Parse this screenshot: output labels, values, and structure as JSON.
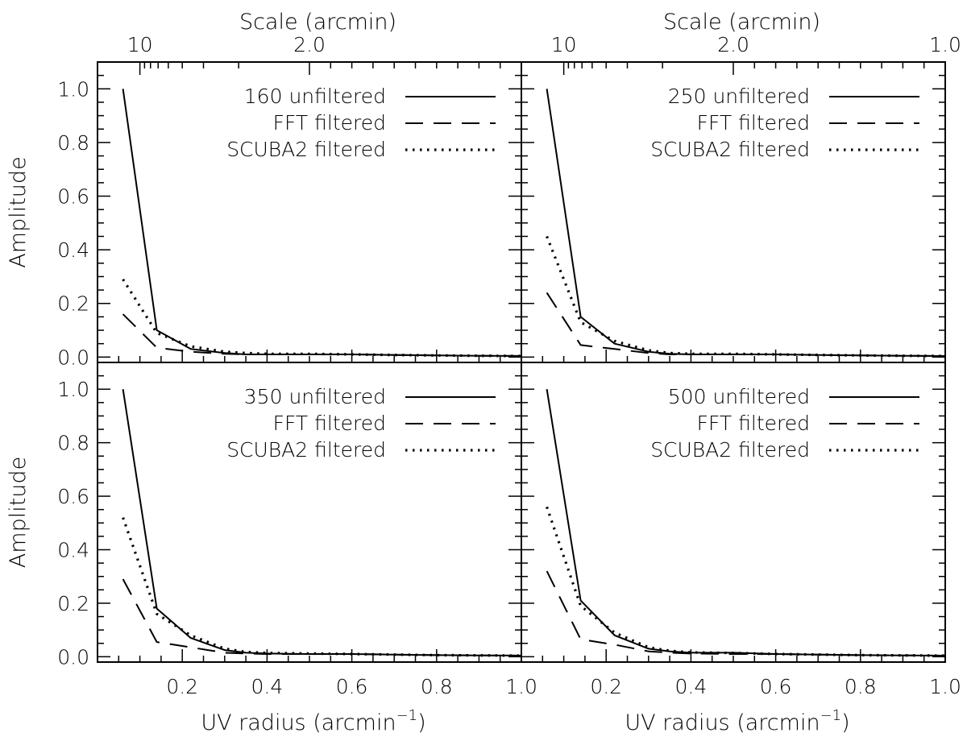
{
  "chart_data": {
    "type": "line",
    "layout": "2x2 grid, shared axes",
    "x_axis": {
      "label": "UV radius (arcmin",
      "label_superscript": "−1",
      "label_close": ")",
      "range": [
        0.0,
        1.0
      ],
      "tick_labels": [
        "0.2",
        "0.4",
        "0.6",
        "0.8",
        "1.0"
      ]
    },
    "top_axis": {
      "label": "Scale (arcmin)",
      "tick_labels": [
        "10",
        "2.0",
        "1.0"
      ]
    },
    "y_axis": {
      "label": "Amplitude",
      "range": [
        -0.02,
        1.1
      ],
      "tick_labels": [
        "0.0",
        "0.2",
        "0.4",
        "0.6",
        "0.8",
        "1.0"
      ]
    },
    "x": [
      0.06,
      0.14,
      0.22,
      0.3,
      0.35,
      0.4,
      0.5,
      0.6,
      0.7,
      0.8,
      0.9,
      1.0
    ],
    "legend_labels": [
      "unfiltered",
      "FFT filtered",
      "SCUBA2 filtered"
    ],
    "panels": [
      {
        "band": "160",
        "series": [
          {
            "name": "160 unfiltered",
            "style": "solid",
            "values": [
              1.0,
              0.1,
              0.03,
              0.015,
              0.01,
              0.01,
              0.01,
              0.01,
              0.008,
              0.006,
              0.005,
              0.004
            ]
          },
          {
            "name": "FFT filtered",
            "style": "dashed",
            "values": [
              0.16,
              0.035,
              0.02,
              0.012,
              0.01,
              0.01,
              0.01,
              0.01,
              0.008,
              0.006,
              0.005,
              0.004
            ]
          },
          {
            "name": "SCUBA2 filtered",
            "style": "dotted",
            "values": [
              0.29,
              0.09,
              0.04,
              0.02,
              0.015,
              0.012,
              0.012,
              0.01,
              0.008,
              0.006,
              0.005,
              0.004
            ]
          }
        ]
      },
      {
        "band": "250",
        "series": [
          {
            "name": "250 unfiltered",
            "style": "solid",
            "values": [
              1.0,
              0.15,
              0.05,
              0.02,
              0.012,
              0.01,
              0.01,
              0.01,
              0.008,
              0.006,
              0.005,
              0.004
            ]
          },
          {
            "name": "FFT filtered",
            "style": "dashed",
            "values": [
              0.24,
              0.045,
              0.03,
              0.015,
              0.01,
              0.01,
              0.01,
              0.01,
              0.008,
              0.006,
              0.005,
              0.004
            ]
          },
          {
            "name": "SCUBA2 filtered",
            "style": "dotted",
            "values": [
              0.45,
              0.13,
              0.06,
              0.025,
              0.015,
              0.012,
              0.012,
              0.01,
              0.008,
              0.006,
              0.005,
              0.004
            ]
          }
        ]
      },
      {
        "band": "350",
        "series": [
          {
            "name": "350 unfiltered",
            "style": "solid",
            "values": [
              1.0,
              0.18,
              0.07,
              0.025,
              0.015,
              0.012,
              0.01,
              0.01,
              0.008,
              0.006,
              0.005,
              0.004
            ]
          },
          {
            "name": "FFT filtered",
            "style": "dashed",
            "values": [
              0.29,
              0.055,
              0.035,
              0.015,
              0.012,
              0.01,
              0.01,
              0.01,
              0.008,
              0.006,
              0.005,
              0.004
            ]
          },
          {
            "name": "SCUBA2 filtered",
            "style": "dotted",
            "values": [
              0.52,
              0.16,
              0.08,
              0.03,
              0.018,
              0.014,
              0.012,
              0.01,
              0.008,
              0.006,
              0.005,
              0.004
            ]
          }
        ]
      },
      {
        "band": "500",
        "series": [
          {
            "name": "500 unfiltered",
            "style": "solid",
            "values": [
              1.0,
              0.21,
              0.08,
              0.03,
              0.02,
              0.015,
              0.015,
              0.01,
              0.008,
              0.006,
              0.005,
              0.004
            ]
          },
          {
            "name": "FFT filtered",
            "style": "dashed",
            "values": [
              0.32,
              0.065,
              0.045,
              0.02,
              0.015,
              0.012,
              0.01,
              0.01,
              0.008,
              0.006,
              0.005,
              0.004
            ]
          },
          {
            "name": "SCUBA2 filtered",
            "style": "dotted",
            "values": [
              0.56,
              0.19,
              0.09,
              0.035,
              0.022,
              0.016,
              0.014,
              0.01,
              0.008,
              0.006,
              0.005,
              0.004
            ]
          }
        ]
      }
    ]
  }
}
